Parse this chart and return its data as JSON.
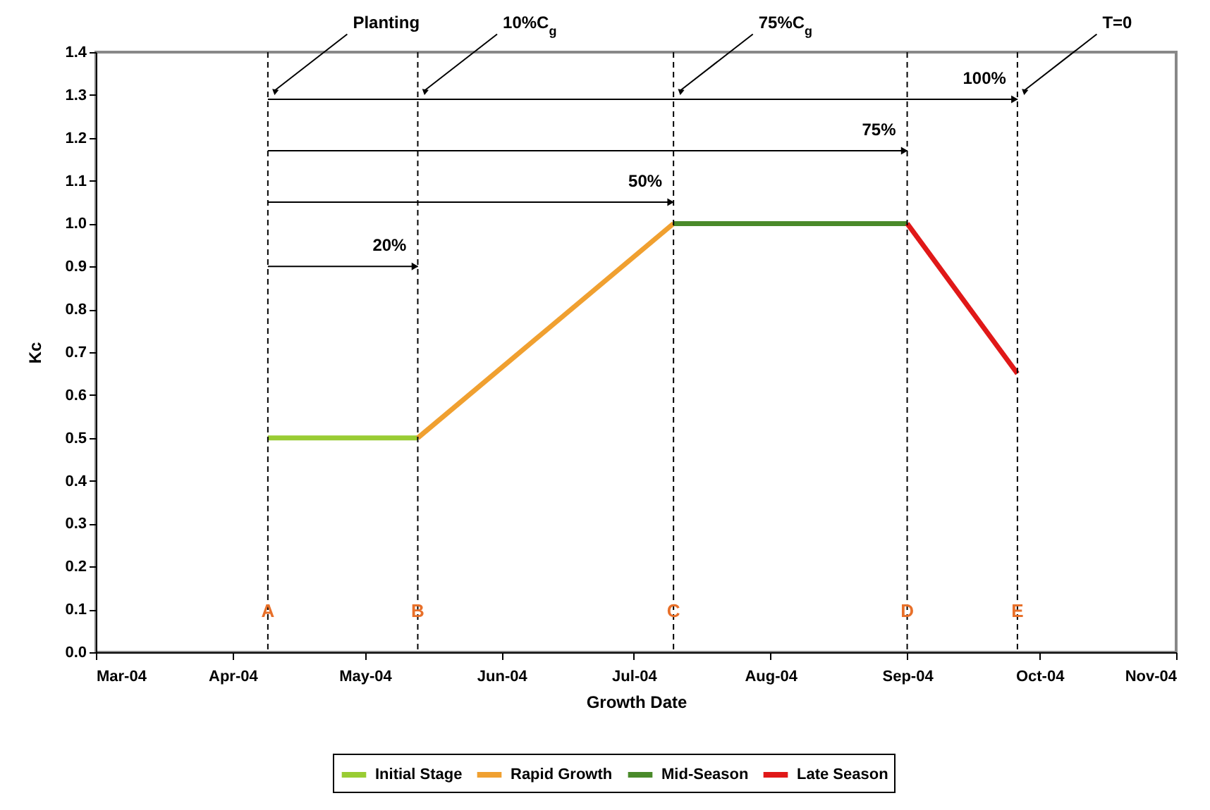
{
  "chart_data": {
    "type": "line",
    "xlabel": "Growth Date",
    "ylabel": "Kc",
    "series": [
      {
        "name": "Initial Stage",
        "color": "#99cc33",
        "x": [
          "2004-04-09",
          "2004-05-13"
        ],
        "values": [
          0.5,
          0.5
        ]
      },
      {
        "name": "Rapid Growth",
        "color": "#f0a030",
        "x": [
          "2004-05-13",
          "2004-07-10"
        ],
        "values": [
          0.5,
          1.0
        ]
      },
      {
        "name": "Mid-Season",
        "color": "#4a8a2a",
        "x": [
          "2004-07-10",
          "2004-09-01"
        ],
        "values": [
          1.0,
          1.0
        ]
      },
      {
        "name": "Late Season",
        "color": "#e01818",
        "x": [
          "2004-09-01",
          "2004-09-26"
        ],
        "values": [
          1.0,
          0.65
        ]
      }
    ],
    "xlim": [
      "2004-03-01",
      "2004-11-01"
    ],
    "xticks": [
      {
        "value": "2004-03-01",
        "label": "Mar-04"
      },
      {
        "value": "2004-04-01",
        "label": "Apr-04"
      },
      {
        "value": "2004-05-01",
        "label": "May-04"
      },
      {
        "value": "2004-06-01",
        "label": "Jun-04"
      },
      {
        "value": "2004-07-01",
        "label": "Jul-04"
      },
      {
        "value": "2004-08-01",
        "label": "Aug-04"
      },
      {
        "value": "2004-09-01",
        "label": "Sep-04"
      },
      {
        "value": "2004-10-01",
        "label": "Oct-04"
      },
      {
        "value": "2004-11-01",
        "label": "Nov-04"
      }
    ],
    "ylim": [
      0,
      1.4
    ],
    "yticks": [
      {
        "value": 0,
        "label": "0.0"
      },
      0.1,
      0.2,
      0.3,
      0.4,
      0.5,
      0.6,
      0.7,
      0.8,
      0.9,
      {
        "value": 1,
        "label": "1.0"
      },
      1.1,
      1.2,
      1.3,
      1.4
    ],
    "ref_lines": [
      {
        "axis": "x",
        "value": "2004-04-09",
        "label": "A",
        "line_style": "dashed"
      },
      {
        "axis": "x",
        "value": "2004-05-13",
        "label": "B",
        "line_style": "dashed"
      },
      {
        "axis": "x",
        "value": "2004-07-10",
        "label": "C",
        "line_style": "dashed"
      },
      {
        "axis": "x",
        "value": "2004-09-01",
        "label": "D",
        "line_style": "dashed"
      },
      {
        "axis": "x",
        "value": "2004-09-26",
        "label": "E",
        "line_style": "dashed"
      }
    ],
    "annotations": [
      {
        "text": "Planting",
        "x": "2004-04-09",
        "y": 1.3
      },
      {
        "text": "10%C$_{g}$",
        "x": "2004-05-13",
        "y": 1.3
      },
      {
        "text": "75%C$_{g}$",
        "x": "2004-07-10",
        "y": 1.3
      },
      {
        "text": "T=0",
        "x": "2004-09-26",
        "y": 1.3
      },
      {
        "text": "100%",
        "x": "2004-09-26",
        "y": 1.29
      },
      {
        "text": "75%",
        "x": "2004-09-01",
        "y": 1.17
      },
      {
        "text": "50%",
        "x": "2004-07-10",
        "y": 1.05
      },
      {
        "text": "20%",
        "x": "2004-05-13",
        "y": 0.9
      }
    ],
    "grid": false,
    "legend": "bottom",
    "line_style": "solid",
    "marker": "none"
  }
}
